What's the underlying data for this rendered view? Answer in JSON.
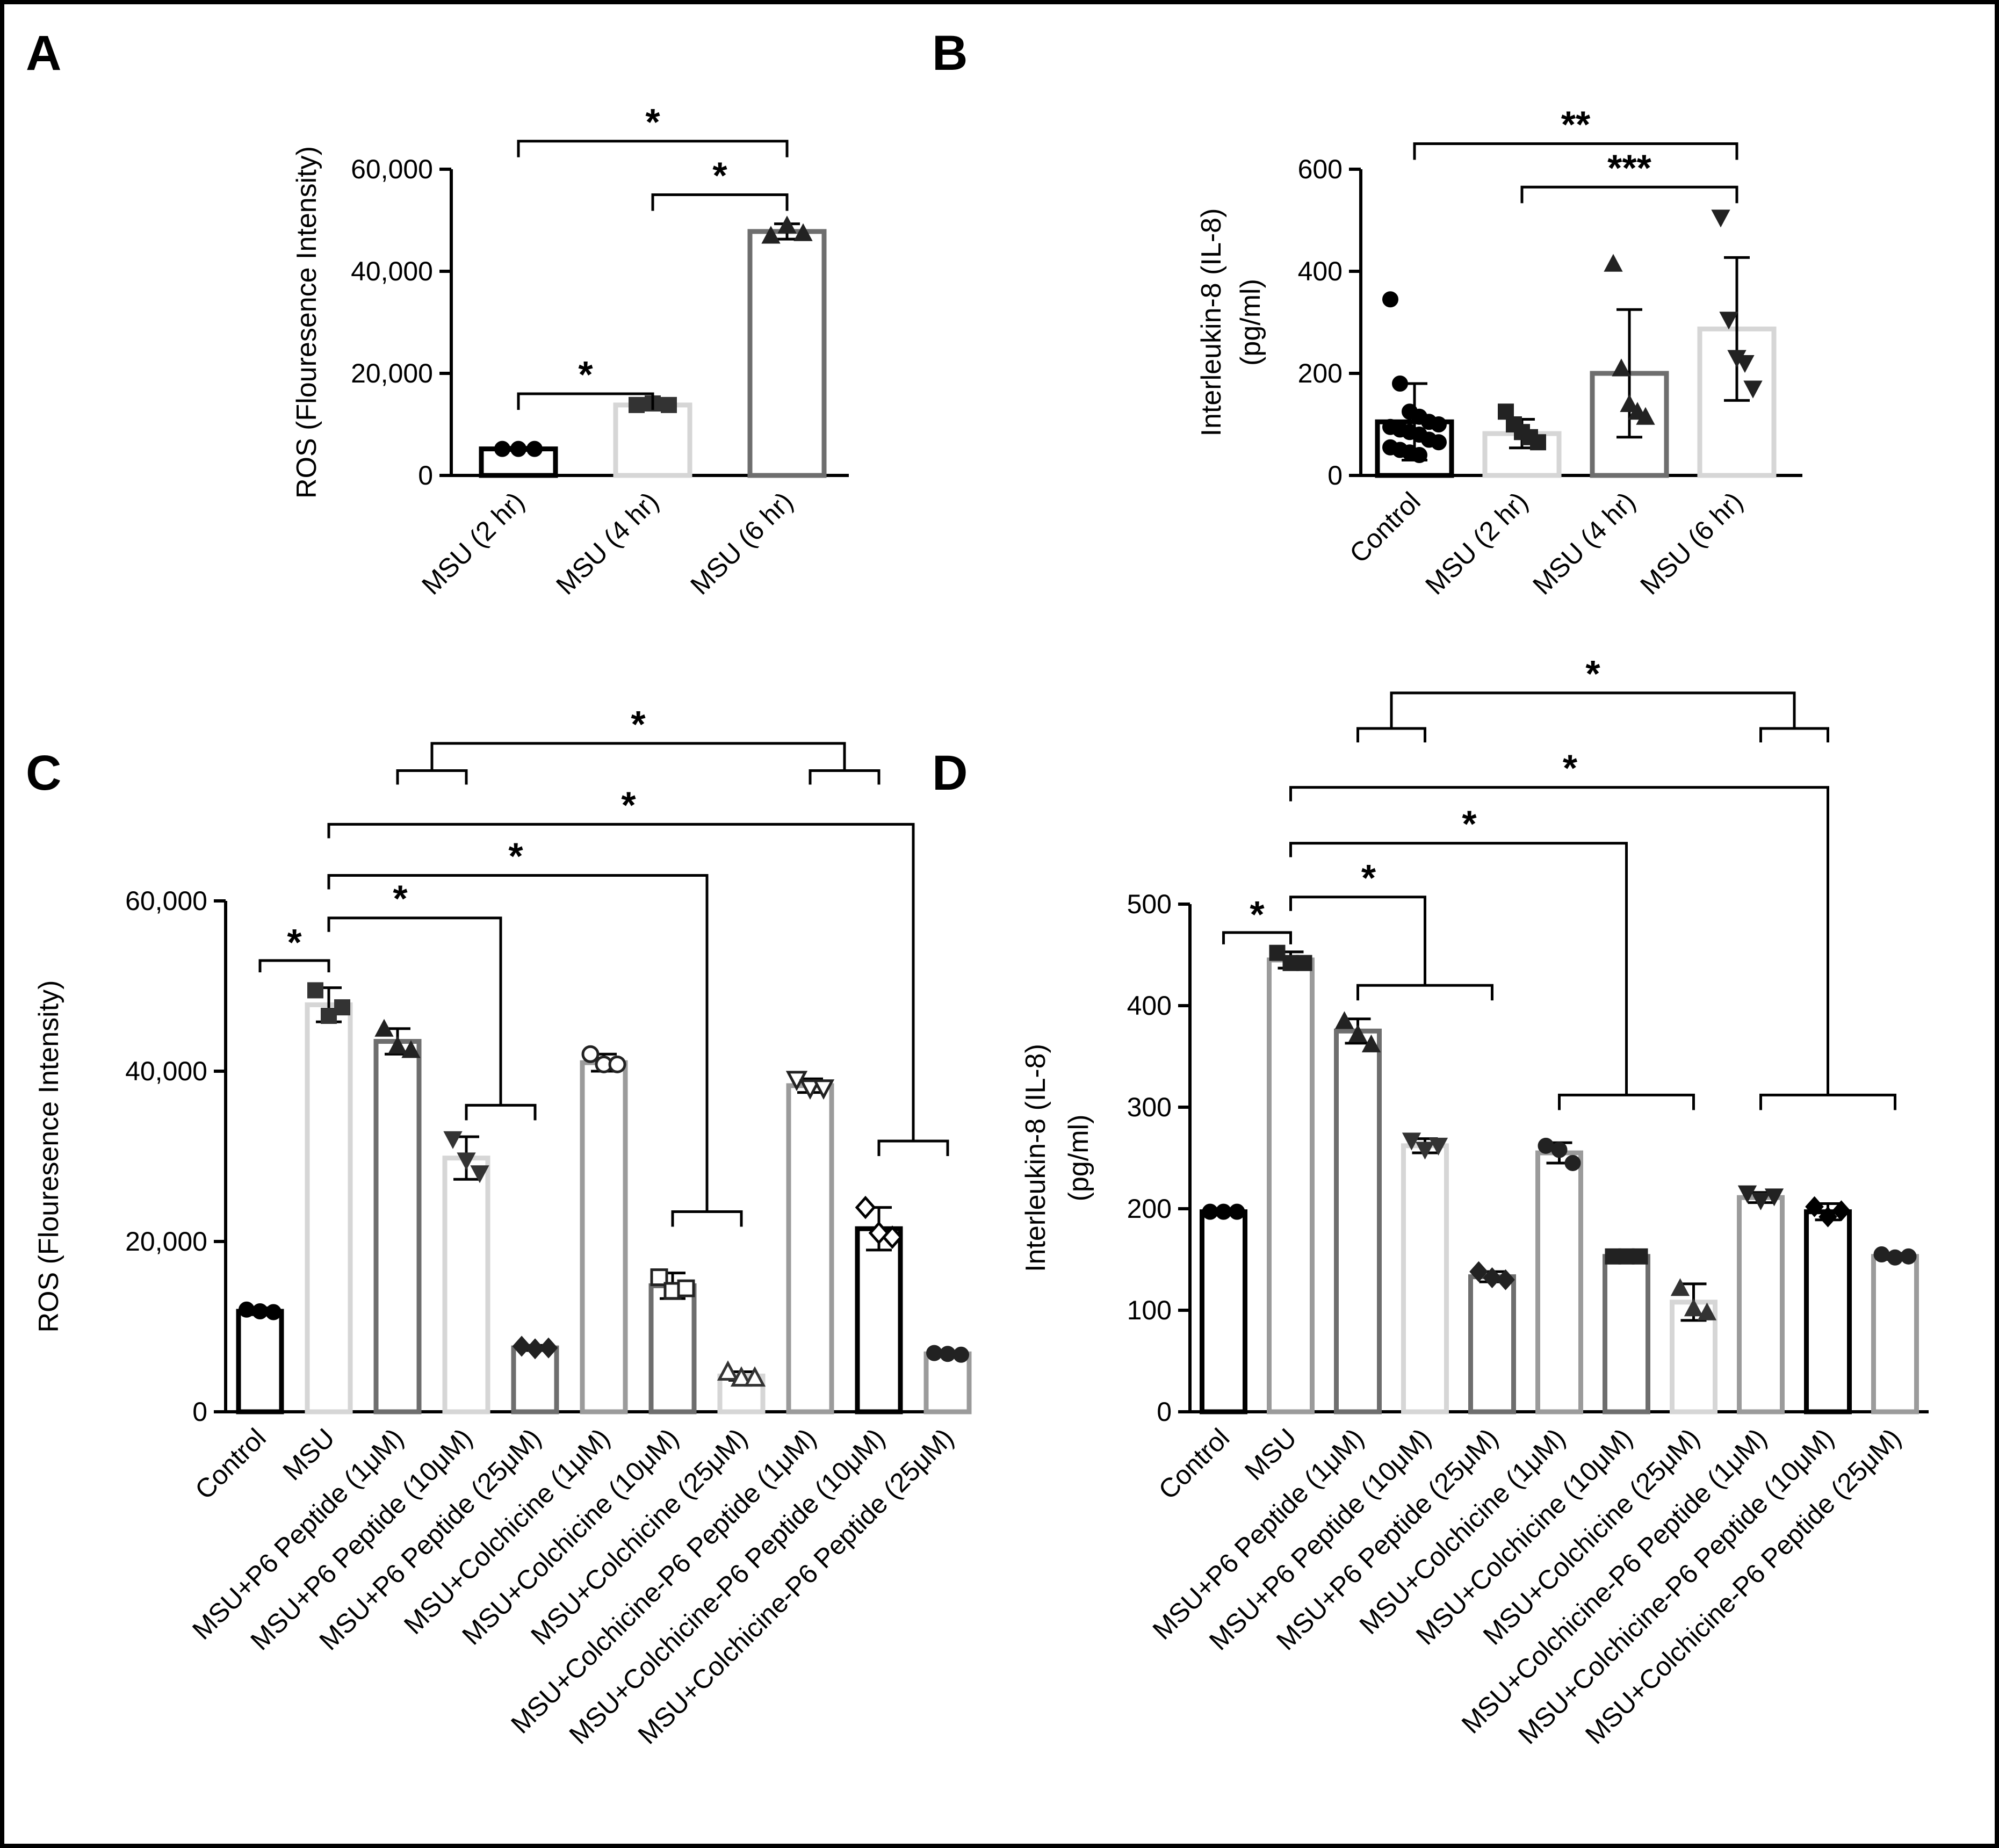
{
  "colors": {
    "black": "#000000",
    "dark_gray": "#6e6e6e",
    "mid_gray": "#9b9b9b",
    "light_gray": "#d6d6d6",
    "border": "#000000"
  },
  "chart_data": [
    {
      "panel": "A",
      "type": "bar",
      "ylabel": "ROS (Flouresence Intensity)",
      "ylim": [
        0,
        60000
      ],
      "yticks": [
        0,
        20000,
        40000,
        60000
      ],
      "ytick_labels": [
        "0",
        "20,000",
        "40,000",
        "60,000"
      ],
      "categories": [
        "MSU (2 hr)",
        "MSU (4 hr)",
        "MSU (6 hr)"
      ],
      "values": [
        5200,
        13800,
        47800
      ],
      "errors": [
        300,
        500,
        1500
      ],
      "bar_colors": [
        "black",
        "light_gray",
        "dark_gray"
      ],
      "points": [
        [
          5200,
          5200,
          5200
        ],
        [
          13800,
          14100,
          13800
        ],
        [
          47000,
          49000,
          47500
        ]
      ],
      "markers": [
        "circle",
        "square",
        "triangle"
      ],
      "significance": [
        {
          "from": 0,
          "to": 1,
          "label": "*"
        },
        {
          "from": 1,
          "to": 2,
          "label": "*"
        },
        {
          "from": 0,
          "to": 2,
          "label": "*"
        }
      ]
    },
    {
      "panel": "B",
      "type": "bar",
      "ylabel_lines": [
        "Interleukin-8 (IL-8)",
        "(pg/ml)"
      ],
      "ylim": [
        0,
        600
      ],
      "yticks": [
        0,
        200,
        400,
        600
      ],
      "ytick_labels": [
        "0",
        "200",
        "400",
        "600"
      ],
      "categories": [
        "Control",
        "MSU (2 hr)",
        "MSU (4 hr)",
        "MSU (6 hr)"
      ],
      "values": [
        105,
        82,
        200,
        287
      ],
      "errors": [
        75,
        28,
        125,
        140
      ],
      "bar_colors": [
        "black",
        "light_gray",
        "dark_gray",
        "light_gray"
      ],
      "points": [
        [
          345,
          180,
          125,
          115,
          105,
          100,
          95,
          90,
          85,
          80,
          70,
          65,
          55,
          50,
          45,
          40
        ],
        [
          125,
          100,
          85,
          75,
          65
        ],
        [
          415,
          210,
          140,
          125,
          115
        ],
        [
          505,
          305,
          230,
          220,
          170
        ]
      ],
      "markers": [
        "circle",
        "square",
        "triangle",
        "triangle_down"
      ],
      "significance": [
        {
          "from": 1,
          "to": 3,
          "label": "***"
        },
        {
          "from": 0,
          "to": 3,
          "label": "**"
        }
      ]
    },
    {
      "panel": "C",
      "type": "bar",
      "ylabel": "ROS (Flouresence Intensity)",
      "ylim": [
        0,
        60000
      ],
      "yticks": [
        0,
        20000,
        40000,
        60000
      ],
      "ytick_labels": [
        "0",
        "20,000",
        "40,000",
        "60,000"
      ],
      "categories": [
        "Control",
        "MSU",
        "MSU+P6 Peptide (1μM)",
        "MSU+P6 Peptide (10μM)",
        "MSU+P6 Peptide (25μM)",
        "MSU+Colchicine (1μM)",
        "MSU+Colchicine (10μM)",
        "MSU+Colchicine (25μM)",
        "MSU+Colchicine-P6 Peptide (1μM)",
        "MSU+Colchicine-P6 Peptide (10μM)",
        "MSU+Colchicine-P6 Peptide (25μM)"
      ],
      "values": [
        11800,
        47800,
        43500,
        29800,
        7500,
        41000,
        14800,
        4200,
        38300,
        21500,
        6800
      ],
      "errors": [
        400,
        2000,
        1500,
        2500,
        300,
        1000,
        1500,
        500,
        800,
        2500,
        200
      ],
      "bar_colors": [
        "black",
        "light_gray",
        "dark_gray",
        "light_gray",
        "dark_gray",
        "mid_gray",
        "dark_gray",
        "light_gray",
        "mid_gray",
        "black",
        "mid_gray"
      ],
      "points": [
        [
          12000,
          11800,
          11700
        ],
        [
          49500,
          46500,
          47500
        ],
        [
          45000,
          43000,
          42500
        ],
        [
          32000,
          29500,
          28000
        ],
        [
          7700,
          7400,
          7500
        ],
        [
          42000,
          40800,
          40800
        ],
        [
          15800,
          14200,
          14500
        ],
        [
          4700,
          4000,
          4000
        ],
        [
          39000,
          38000,
          38000
        ],
        [
          24000,
          21000,
          20500
        ],
        [
          6900,
          6800,
          6700
        ]
      ],
      "markers": [
        "circle",
        "square",
        "triangle",
        "triangle_down",
        "diamond",
        "circle_open",
        "square_open",
        "triangle_open",
        "triangle_down_open",
        "diamond_open",
        "circle"
      ],
      "significance": [
        {
          "type": "simple",
          "from": 0,
          "to": 1,
          "label": "*"
        },
        {
          "type": "group",
          "from": 1,
          "targets": [
            3,
            4
          ],
          "label": "*"
        },
        {
          "type": "group",
          "from": 1,
          "targets": [
            6,
            7
          ],
          "label": "*"
        },
        {
          "type": "group",
          "from": 1,
          "targets": [
            9,
            10
          ],
          "label": "*"
        },
        {
          "type": "pair_groups",
          "left": [
            2,
            3
          ],
          "right": [
            8,
            9
          ],
          "label": "*"
        }
      ]
    },
    {
      "panel": "D",
      "type": "bar",
      "ylabel_lines": [
        "Interleukin-8 (IL-8)",
        "(pg/ml)"
      ],
      "ylim": [
        0,
        500
      ],
      "yticks": [
        0,
        100,
        200,
        300,
        400,
        500
      ],
      "ytick_labels": [
        "0",
        "100",
        "200",
        "300",
        "400",
        "500"
      ],
      "categories": [
        "Control",
        "MSU",
        "MSU+P6 Peptide (1μM)",
        "MSU+P6 Peptide (10μM)",
        "MSU+P6 Peptide (25μM)",
        "MSU+Colchicine (1μM)",
        "MSU+Colchicine (10μM)",
        "MSU+Colchicine (25μM)",
        "MSU+Colchicine-P6 Peptide (1μM)",
        "MSU+Colchicine-P6 Peptide (10μM)",
        "MSU+Colchicine-P6 Peptide (25μM)"
      ],
      "values": [
        197,
        445,
        375,
        262,
        133,
        255,
        153,
        108,
        211,
        197,
        153
      ],
      "errors": [
        2,
        8,
        12,
        7,
        5,
        10,
        1,
        18,
        5,
        8,
        3
      ],
      "bar_colors": [
        "black",
        "mid_gray",
        "dark_gray",
        "light_gray",
        "dark_gray",
        "mid_gray",
        "dark_gray",
        "light_gray",
        "mid_gray",
        "black",
        "mid_gray"
      ],
      "points": [
        [
          197,
          197,
          197
        ],
        [
          452,
          442,
          442
        ],
        [
          385,
          372,
          362
        ],
        [
          267,
          258,
          262
        ],
        [
          138,
          132,
          130
        ],
        [
          262,
          258,
          245
        ],
        [
          153,
          153,
          153
        ],
        [
          122,
          102,
          98
        ],
        [
          215,
          208,
          212
        ],
        [
          202,
          192,
          198
        ],
        [
          155,
          152,
          153
        ]
      ],
      "markers": [
        "circle",
        "square",
        "triangle",
        "triangle_down",
        "diamond",
        "circle",
        "square",
        "triangle",
        "triangle_down",
        "diamond",
        "circle"
      ],
      "significance": [
        {
          "type": "simple",
          "from": 0,
          "to": 1,
          "label": "*"
        },
        {
          "type": "group",
          "from": 1,
          "targets": [
            2,
            4
          ],
          "label": "*"
        },
        {
          "type": "group",
          "from": 1,
          "targets": [
            5,
            7
          ],
          "label": "*"
        },
        {
          "type": "group",
          "from": 1,
          "targets": [
            8,
            10
          ],
          "label": "*"
        },
        {
          "type": "pair_groups",
          "left": [
            2,
            3
          ],
          "right": [
            8,
            9
          ],
          "label": "*"
        }
      ]
    }
  ]
}
